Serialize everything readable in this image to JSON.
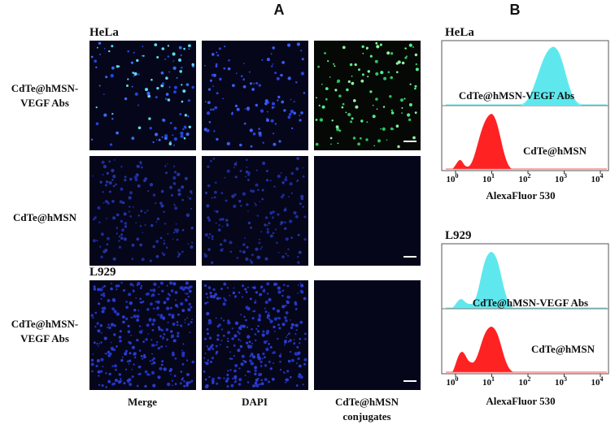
{
  "panel_a": {
    "label": "A",
    "cell_labels": [
      "HeLa",
      "L929"
    ],
    "rows": [
      [
        "CdTe@hMSN-",
        "VEGF Abs"
      ],
      [
        "CdTe@hMSN"
      ],
      [
        "CdTe@hMSN-",
        "VEGF Abs"
      ]
    ],
    "columns": [
      [
        "Merge"
      ],
      [
        "DAPI"
      ],
      [
        "CdTe@hMSN",
        "conjugates"
      ]
    ]
  },
  "panel_b": {
    "label": "B",
    "plots": [
      {
        "cell_label": "HeLa",
        "upper": "CdTe@hMSN-VEGF Abs",
        "lower": "CdTe@hMSN",
        "xticks": [
          {
            "base": "10",
            "exp": "0"
          },
          {
            "base": "10",
            "exp": "1"
          },
          {
            "base": "10",
            "exp": "2"
          },
          {
            "base": "10",
            "exp": "3"
          },
          {
            "base": "10",
            "exp": "4"
          }
        ],
        "xlabel": "AlexaFluor 530"
      },
      {
        "cell_label": "L929",
        "upper": "CdTe@hMSN-VEGF Abs",
        "lower": "CdTe@hMSN",
        "xticks": [
          {
            "base": "10",
            "exp": "0"
          },
          {
            "base": "10",
            "exp": "1"
          },
          {
            "base": "10",
            "exp": "2"
          },
          {
            "base": "10",
            "exp": "3"
          },
          {
            "base": "10",
            "exp": "4"
          }
        ],
        "xlabel": "AlexaFluor 530"
      }
    ]
  }
}
